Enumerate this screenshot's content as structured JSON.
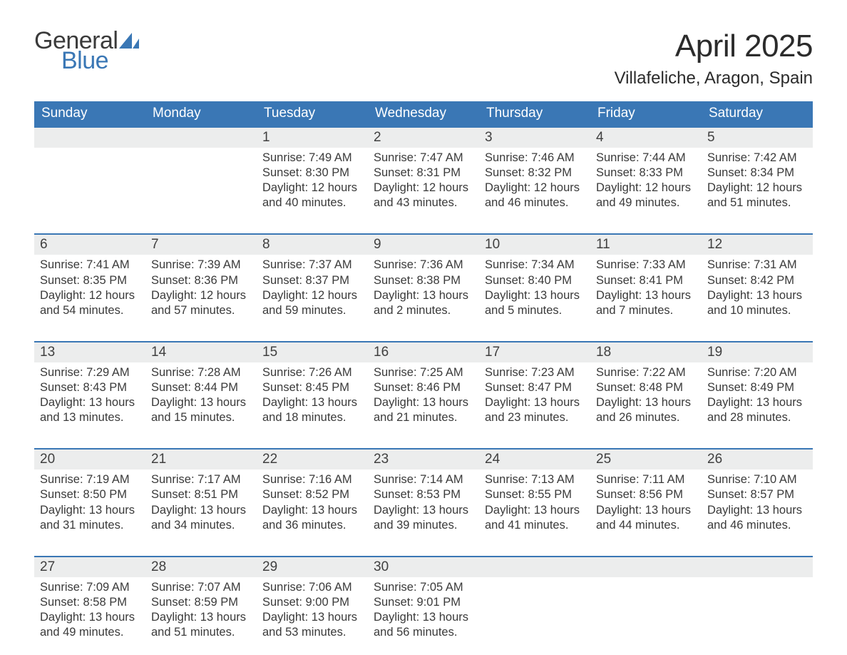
{
  "brand": {
    "part1": "General",
    "part2": "Blue",
    "accent_color": "#3a77b5"
  },
  "title": {
    "month": "April 2025",
    "location": "Villafeliche, Aragon, Spain",
    "title_fontsize": 44,
    "location_fontsize": 24
  },
  "colors": {
    "header_bg": "#3a77b5",
    "header_text": "#ffffff",
    "band_bg": "#eceded",
    "text": "#3a3a3a",
    "rule": "#3a77b5"
  },
  "weekdays": [
    "Sunday",
    "Monday",
    "Tuesday",
    "Wednesday",
    "Thursday",
    "Friday",
    "Saturday"
  ],
  "weeks": [
    [
      {
        "num": "",
        "sunrise": "",
        "sunset": "",
        "daylight": ""
      },
      {
        "num": "",
        "sunrise": "",
        "sunset": "",
        "daylight": ""
      },
      {
        "num": "1",
        "sunrise": "Sunrise: 7:49 AM",
        "sunset": "Sunset: 8:30 PM",
        "daylight": "Daylight: 12 hours and 40 minutes."
      },
      {
        "num": "2",
        "sunrise": "Sunrise: 7:47 AM",
        "sunset": "Sunset: 8:31 PM",
        "daylight": "Daylight: 12 hours and 43 minutes."
      },
      {
        "num": "3",
        "sunrise": "Sunrise: 7:46 AM",
        "sunset": "Sunset: 8:32 PM",
        "daylight": "Daylight: 12 hours and 46 minutes."
      },
      {
        "num": "4",
        "sunrise": "Sunrise: 7:44 AM",
        "sunset": "Sunset: 8:33 PM",
        "daylight": "Daylight: 12 hours and 49 minutes."
      },
      {
        "num": "5",
        "sunrise": "Sunrise: 7:42 AM",
        "sunset": "Sunset: 8:34 PM",
        "daylight": "Daylight: 12 hours and 51 minutes."
      }
    ],
    [
      {
        "num": "6",
        "sunrise": "Sunrise: 7:41 AM",
        "sunset": "Sunset: 8:35 PM",
        "daylight": "Daylight: 12 hours and 54 minutes."
      },
      {
        "num": "7",
        "sunrise": "Sunrise: 7:39 AM",
        "sunset": "Sunset: 8:36 PM",
        "daylight": "Daylight: 12 hours and 57 minutes."
      },
      {
        "num": "8",
        "sunrise": "Sunrise: 7:37 AM",
        "sunset": "Sunset: 8:37 PM",
        "daylight": "Daylight: 12 hours and 59 minutes."
      },
      {
        "num": "9",
        "sunrise": "Sunrise: 7:36 AM",
        "sunset": "Sunset: 8:38 PM",
        "daylight": "Daylight: 13 hours and 2 minutes."
      },
      {
        "num": "10",
        "sunrise": "Sunrise: 7:34 AM",
        "sunset": "Sunset: 8:40 PM",
        "daylight": "Daylight: 13 hours and 5 minutes."
      },
      {
        "num": "11",
        "sunrise": "Sunrise: 7:33 AM",
        "sunset": "Sunset: 8:41 PM",
        "daylight": "Daylight: 13 hours and 7 minutes."
      },
      {
        "num": "12",
        "sunrise": "Sunrise: 7:31 AM",
        "sunset": "Sunset: 8:42 PM",
        "daylight": "Daylight: 13 hours and 10 minutes."
      }
    ],
    [
      {
        "num": "13",
        "sunrise": "Sunrise: 7:29 AM",
        "sunset": "Sunset: 8:43 PM",
        "daylight": "Daylight: 13 hours and 13 minutes."
      },
      {
        "num": "14",
        "sunrise": "Sunrise: 7:28 AM",
        "sunset": "Sunset: 8:44 PM",
        "daylight": "Daylight: 13 hours and 15 minutes."
      },
      {
        "num": "15",
        "sunrise": "Sunrise: 7:26 AM",
        "sunset": "Sunset: 8:45 PM",
        "daylight": "Daylight: 13 hours and 18 minutes."
      },
      {
        "num": "16",
        "sunrise": "Sunrise: 7:25 AM",
        "sunset": "Sunset: 8:46 PM",
        "daylight": "Daylight: 13 hours and 21 minutes."
      },
      {
        "num": "17",
        "sunrise": "Sunrise: 7:23 AM",
        "sunset": "Sunset: 8:47 PM",
        "daylight": "Daylight: 13 hours and 23 minutes."
      },
      {
        "num": "18",
        "sunrise": "Sunrise: 7:22 AM",
        "sunset": "Sunset: 8:48 PM",
        "daylight": "Daylight: 13 hours and 26 minutes."
      },
      {
        "num": "19",
        "sunrise": "Sunrise: 7:20 AM",
        "sunset": "Sunset: 8:49 PM",
        "daylight": "Daylight: 13 hours and 28 minutes."
      }
    ],
    [
      {
        "num": "20",
        "sunrise": "Sunrise: 7:19 AM",
        "sunset": "Sunset: 8:50 PM",
        "daylight": "Daylight: 13 hours and 31 minutes."
      },
      {
        "num": "21",
        "sunrise": "Sunrise: 7:17 AM",
        "sunset": "Sunset: 8:51 PM",
        "daylight": "Daylight: 13 hours and 34 minutes."
      },
      {
        "num": "22",
        "sunrise": "Sunrise: 7:16 AM",
        "sunset": "Sunset: 8:52 PM",
        "daylight": "Daylight: 13 hours and 36 minutes."
      },
      {
        "num": "23",
        "sunrise": "Sunrise: 7:14 AM",
        "sunset": "Sunset: 8:53 PM",
        "daylight": "Daylight: 13 hours and 39 minutes."
      },
      {
        "num": "24",
        "sunrise": "Sunrise: 7:13 AM",
        "sunset": "Sunset: 8:55 PM",
        "daylight": "Daylight: 13 hours and 41 minutes."
      },
      {
        "num": "25",
        "sunrise": "Sunrise: 7:11 AM",
        "sunset": "Sunset: 8:56 PM",
        "daylight": "Daylight: 13 hours and 44 minutes."
      },
      {
        "num": "26",
        "sunrise": "Sunrise: 7:10 AM",
        "sunset": "Sunset: 8:57 PM",
        "daylight": "Daylight: 13 hours and 46 minutes."
      }
    ],
    [
      {
        "num": "27",
        "sunrise": "Sunrise: 7:09 AM",
        "sunset": "Sunset: 8:58 PM",
        "daylight": "Daylight: 13 hours and 49 minutes."
      },
      {
        "num": "28",
        "sunrise": "Sunrise: 7:07 AM",
        "sunset": "Sunset: 8:59 PM",
        "daylight": "Daylight: 13 hours and 51 minutes."
      },
      {
        "num": "29",
        "sunrise": "Sunrise: 7:06 AM",
        "sunset": "Sunset: 9:00 PM",
        "daylight": "Daylight: 13 hours and 53 minutes."
      },
      {
        "num": "30",
        "sunrise": "Sunrise: 7:05 AM",
        "sunset": "Sunset: 9:01 PM",
        "daylight": "Daylight: 13 hours and 56 minutes."
      },
      {
        "num": "",
        "sunrise": "",
        "sunset": "",
        "daylight": ""
      },
      {
        "num": "",
        "sunrise": "",
        "sunset": "",
        "daylight": ""
      },
      {
        "num": "",
        "sunrise": "",
        "sunset": "",
        "daylight": ""
      }
    ]
  ]
}
